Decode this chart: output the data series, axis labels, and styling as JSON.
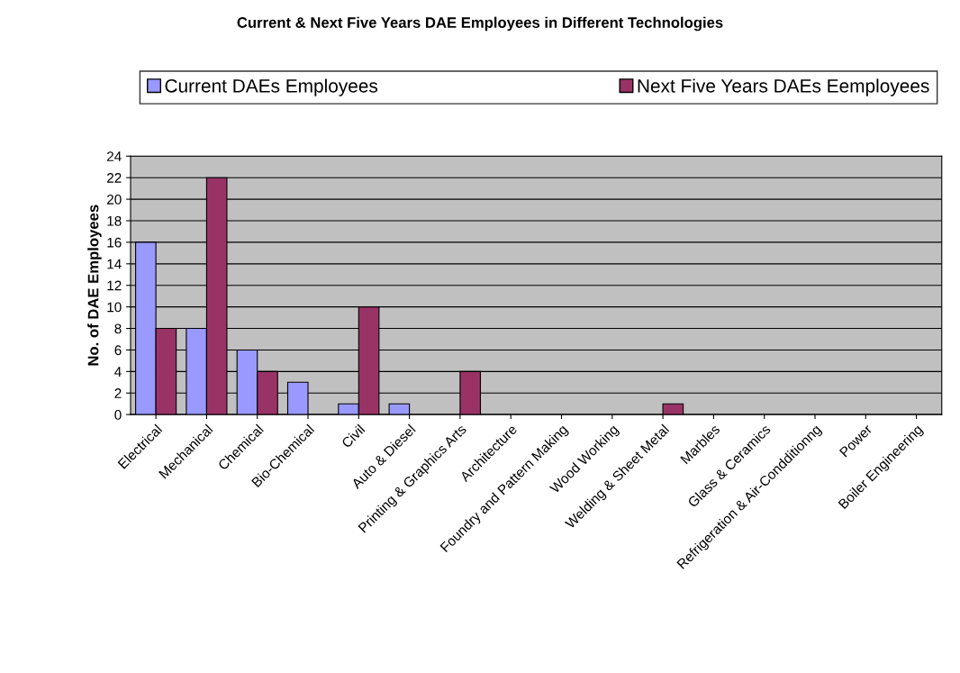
{
  "chart_data": {
    "type": "bar",
    "title": "Current & Next Five Years DAE Employees in Different Technologies",
    "ylabel": "No. of DAE Employees",
    "categories": [
      "Electrical",
      "Mechanical",
      "Chemical",
      "Bio-Chemical",
      "Civil",
      "Auto & Diesel",
      "Printing & Graphics Arts",
      "Architecture",
      "Foundry and Pattern Making",
      "Wood Working",
      "Welding & Sheet Metal",
      "Marbles",
      "Glass & Ceramics",
      "Refrigeration & Air-Condditionng",
      "Power",
      "Boiler Engineering"
    ],
    "series": [
      {
        "name": "Current DAEs Employees",
        "color": "#9999ff",
        "values": [
          16,
          8,
          6,
          3,
          1,
          1,
          0,
          0,
          0,
          0,
          0,
          0,
          0,
          0,
          0,
          0
        ]
      },
      {
        "name": "Next Five Years DAEs Eemployees",
        "color": "#993366",
        "values": [
          8,
          22,
          4,
          0,
          10,
          0,
          4,
          0,
          0,
          0,
          1,
          0,
          0,
          0,
          0,
          0
        ]
      }
    ],
    "ylim": [
      0,
      24
    ],
    "yticks": [
      0,
      2,
      4,
      6,
      8,
      10,
      12,
      14,
      16,
      18,
      20,
      22,
      24
    ],
    "grid": "y",
    "legend": "top"
  }
}
